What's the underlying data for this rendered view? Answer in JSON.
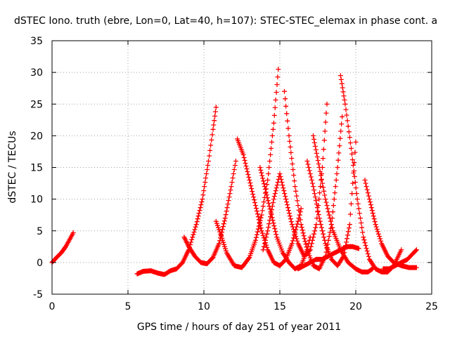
{
  "chart_data": {
    "type": "scatter",
    "title": "dSTEC Iono. truth (ebre, Lon=0, Lat=40, h=107): STEC-STEC_elemax in phase cont. a",
    "xlabel": "GPS time / hours of day 251 of year 2011",
    "ylabel": "dSTEC  / TECUs",
    "xlim": [
      0,
      25
    ],
    "ylim": [
      -5,
      35
    ],
    "xticks": [
      0,
      5,
      10,
      15,
      20,
      25
    ],
    "yticks": [
      -5,
      0,
      5,
      10,
      15,
      20,
      25,
      30,
      35
    ],
    "grid": true,
    "marker": "+",
    "series_color": "#ff0000",
    "series": [
      {
        "x": [
          0.0,
          0.3,
          0.6,
          0.9,
          1.2,
          1.4
        ],
        "y": [
          0.0,
          0.8,
          1.5,
          2.5,
          3.8,
          4.7
        ]
      },
      {
        "x": [
          5.6,
          6.0,
          6.5,
          7.0,
          7.4,
          7.8,
          8.2,
          8.6,
          9.0,
          9.5,
          9.9,
          10.3,
          10.6,
          10.8
        ],
        "y": [
          -1.8,
          -1.4,
          -1.3,
          -1.7,
          -1.9,
          -1.3,
          -1.0,
          0.0,
          2.0,
          6.0,
          10.0,
          16.0,
          21.0,
          24.5
        ]
      },
      {
        "x": [
          8.7,
          9.0,
          9.4,
          9.8,
          10.2,
          10.6,
          11.0,
          11.4,
          11.8,
          12.1
        ],
        "y": [
          4.0,
          2.5,
          1.0,
          0.0,
          -0.2,
          0.8,
          3.0,
          7.0,
          12.0,
          16.0
        ]
      },
      {
        "x": [
          10.8,
          11.1,
          11.5,
          12.0,
          12.5,
          13.0,
          13.4,
          13.8,
          14.2,
          14.6,
          14.9
        ],
        "y": [
          6.5,
          4.5,
          1.5,
          -0.5,
          -0.8,
          0.8,
          3.5,
          7.5,
          13.0,
          22.0,
          30.5
        ]
      },
      {
        "x": [
          12.2,
          12.6,
          13.0,
          13.4,
          13.8,
          14.2,
          14.6,
          15.0,
          15.4,
          15.8,
          16.2,
          16.4
        ],
        "y": [
          19.5,
          17.0,
          13.0,
          9.0,
          5.0,
          2.0,
          0.0,
          -0.5,
          0.5,
          3.0,
          6.5,
          8.5
        ]
      },
      {
        "x": [
          13.7,
          14.0,
          14.4,
          14.8,
          15.2,
          15.6,
          16.0,
          16.4,
          16.8,
          17.0
        ],
        "y": [
          15.0,
          12.0,
          8.0,
          4.0,
          1.5,
          0.0,
          -1.0,
          -0.5,
          2.0,
          4.0
        ]
      },
      {
        "x": [
          13.9,
          14.2,
          14.6,
          15.0,
          15.4,
          15.8,
          16.2,
          16.6,
          17.0,
          17.4,
          17.8,
          18.1
        ],
        "y": [
          2.0,
          5.0,
          10.0,
          14.0,
          10.0,
          6.0,
          3.0,
          1.0,
          2.0,
          6.0,
          15.0,
          25.0
        ]
      },
      {
        "x": [
          15.3,
          15.6,
          16.0,
          16.4,
          16.8,
          17.2,
          17.6,
          18.0,
          18.4,
          18.8,
          19.1
        ],
        "y": [
          27.0,
          20.0,
          12.0,
          6.0,
          2.0,
          -0.5,
          -1.0,
          1.0,
          6.0,
          15.0,
          23.0
        ]
      },
      {
        "x": [
          16.8,
          17.2,
          17.6,
          18.0,
          18.4,
          18.8,
          19.2,
          19.6,
          20.0
        ],
        "y": [
          16.0,
          12.0,
          7.0,
          3.0,
          0.5,
          -0.5,
          1.0,
          6.0,
          19.0
        ]
      },
      {
        "x": [
          17.2,
          17.6,
          18.0,
          18.5,
          19.0,
          19.5,
          20.0,
          20.4,
          20.8,
          21.1
        ],
        "y": [
          20.0,
          15.0,
          10.0,
          5.0,
          2.0,
          0.0,
          -1.0,
          -1.5,
          -1.5,
          -1.0
        ]
      },
      {
        "x": [
          19.0,
          19.3,
          19.7,
          20.1,
          20.5,
          20.9,
          21.3,
          21.7,
          22.1,
          22.5,
          23.0
        ],
        "y": [
          29.5,
          25.0,
          18.0,
          10.0,
          4.0,
          0.5,
          -1.0,
          -1.5,
          -1.5,
          -0.5,
          2.0
        ]
      },
      {
        "x": [
          20.6,
          20.9,
          21.3,
          21.7,
          22.1,
          22.5,
          23.0,
          23.5,
          24.0
        ],
        "y": [
          13.0,
          10.0,
          6.0,
          3.0,
          1.0,
          0.0,
          -0.5,
          -0.8,
          -0.8
        ]
      },
      {
        "x": [
          16.2,
          16.6,
          17.0,
          17.4,
          17.8,
          18.2,
          18.6,
          19.0,
          19.4,
          19.8,
          20.2
        ],
        "y": [
          -1.0,
          -0.5,
          0.0,
          0.5,
          0.5,
          1.0,
          1.5,
          2.0,
          2.5,
          2.5,
          2.2
        ]
      },
      {
        "x": [
          21.8,
          22.2,
          22.6,
          23.0,
          23.4,
          23.8,
          24.0
        ],
        "y": [
          -1.0,
          -1.0,
          -0.5,
          0.0,
          0.5,
          1.5,
          2.0
        ]
      }
    ]
  }
}
